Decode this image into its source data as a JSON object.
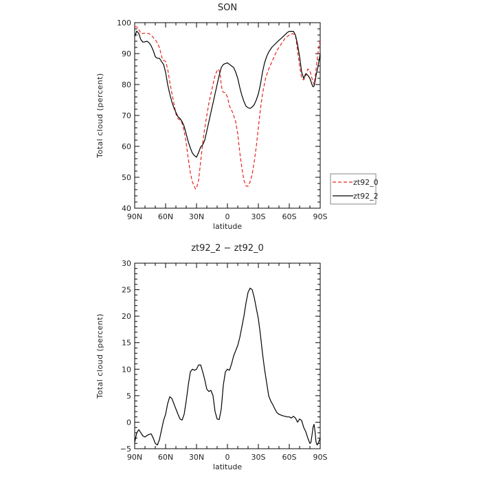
{
  "chart_data": [
    {
      "type": "line",
      "title": "SON",
      "xlabel": "latitude",
      "ylabel": "Total cloud (percent)",
      "xlim": [
        90,
        -90
      ],
      "ylim": [
        40,
        100
      ],
      "x_ticks": [
        90,
        60,
        30,
        0,
        -30,
        -60,
        -90
      ],
      "x_tick_labels": [
        "90N",
        "60N",
        "30N",
        "0",
        "30S",
        "60S",
        "90S"
      ],
      "y_ticks": [
        40,
        50,
        60,
        70,
        80,
        90,
        100
      ],
      "y_tick_labels": [
        "40",
        "50",
        "60",
        "70",
        "80",
        "90",
        "100"
      ],
      "legend": {
        "placement": "right"
      },
      "series": [
        {
          "name": "zt92_0",
          "color": "#e8211d",
          "dash": "dashed",
          "points": [
            [
              90,
              98.8
            ],
            [
              87,
              98.5
            ],
            [
              84,
              96.5
            ],
            [
              80,
              96.6
            ],
            [
              76,
              96.5
            ],
            [
              73,
              95.6
            ],
            [
              69,
              94
            ],
            [
              66,
              92
            ],
            [
              63,
              88
            ],
            [
              60,
              87.5
            ],
            [
              58,
              85
            ],
            [
              55,
              79
            ],
            [
              52,
              74
            ],
            [
              50,
              70.5
            ],
            [
              48,
              69
            ],
            [
              46,
              68.5
            ],
            [
              44,
              67.5
            ],
            [
              42,
              65
            ],
            [
              40,
              61
            ],
            [
              38,
              56
            ],
            [
              36,
              51.5
            ],
            [
              34,
              48.5
            ],
            [
              32,
              47
            ],
            [
              31,
              46.2
            ],
            [
              30,
              46.5
            ],
            [
              28,
              49
            ],
            [
              26,
              55
            ],
            [
              24,
              61
            ],
            [
              22,
              66
            ],
            [
              20,
              70
            ],
            [
              18,
              74
            ],
            [
              16,
              77
            ],
            [
              14,
              80
            ],
            [
              12,
              83
            ],
            [
              10,
              84.5
            ],
            [
              9,
              85
            ],
            [
              8,
              84.5
            ],
            [
              7,
              83
            ],
            [
              6,
              80
            ],
            [
              5,
              78
            ],
            [
              4,
              77.5
            ],
            [
              3,
              77.5
            ],
            [
              2,
              77.2
            ],
            [
              0,
              76
            ],
            [
              -2,
              73
            ],
            [
              -5,
              71
            ],
            [
              -8,
              68
            ],
            [
              -10,
              64
            ],
            [
              -12,
              58
            ],
            [
              -14,
              53
            ],
            [
              -16,
              49
            ],
            [
              -18,
              47.2
            ],
            [
              -20,
              47.1
            ],
            [
              -22,
              48.5
            ],
            [
              -24,
              51
            ],
            [
              -26,
              55
            ],
            [
              -28,
              60
            ],
            [
              -30,
              66
            ],
            [
              -32,
              72
            ],
            [
              -34,
              77
            ],
            [
              -37,
              82
            ],
            [
              -40,
              85
            ],
            [
              -44,
              88
            ],
            [
              -48,
              91
            ],
            [
              -52,
              93
            ],
            [
              -56,
              95
            ],
            [
              -60,
              96
            ],
            [
              -63,
              96.5
            ],
            [
              -66,
              96
            ],
            [
              -68,
              91
            ],
            [
              -70,
              86
            ],
            [
              -72,
              82
            ],
            [
              -74,
              81.5
            ],
            [
              -76,
              83
            ],
            [
              -78,
              85
            ],
            [
              -80,
              84.5
            ],
            [
              -82,
              82
            ],
            [
              -84,
              80
            ],
            [
              -85,
              82
            ],
            [
              -87,
              88
            ],
            [
              -89,
              93
            ],
            [
              -90,
              94
            ]
          ]
        },
        {
          "name": "zt92_2",
          "color": "#000000",
          "dash": "solid",
          "points": [
            [
              90,
              95.5
            ],
            [
              88,
              97.3
            ],
            [
              86,
              96.5
            ],
            [
              84,
              94.5
            ],
            [
              82,
              93.7
            ],
            [
              80,
              93.8
            ],
            [
              78,
              94
            ],
            [
              76,
              93.5
            ],
            [
              74,
              92.5
            ],
            [
              72,
              91
            ],
            [
              70,
              89
            ],
            [
              68,
              88.5
            ],
            [
              66,
              88.5
            ],
            [
              64,
              87.5
            ],
            [
              62,
              86.5
            ],
            [
              60,
              84
            ],
            [
              58,
              80
            ],
            [
              56,
              77
            ],
            [
              54,
              74.5
            ],
            [
              52,
              72.5
            ],
            [
              50,
              71
            ],
            [
              48,
              69.6
            ],
            [
              46,
              69
            ],
            [
              44,
              68
            ],
            [
              42,
              66.5
            ],
            [
              40,
              64
            ],
            [
              38,
              61.5
            ],
            [
              36,
              59.5
            ],
            [
              34,
              57.8
            ],
            [
              32,
              57
            ],
            [
              30,
              56.5
            ],
            [
              28,
              58
            ],
            [
              26,
              59.8
            ],
            [
              24,
              60.5
            ],
            [
              22,
              62
            ],
            [
              20,
              65
            ],
            [
              18,
              68
            ],
            [
              16,
              71
            ],
            [
              14,
              74
            ],
            [
              12,
              77
            ],
            [
              10,
              80
            ],
            [
              8,
              83
            ],
            [
              6,
              85.5
            ],
            [
              4,
              86.5
            ],
            [
              2,
              86.8
            ],
            [
              0,
              87
            ],
            [
              -2,
              86.5
            ],
            [
              -4,
              86
            ],
            [
              -6,
              85.5
            ],
            [
              -8,
              84
            ],
            [
              -10,
              82
            ],
            [
              -12,
              79
            ],
            [
              -14,
              76.5
            ],
            [
              -16,
              74.5
            ],
            [
              -18,
              73
            ],
            [
              -20,
              72.5
            ],
            [
              -22,
              72.3
            ],
            [
              -24,
              72.7
            ],
            [
              -26,
              73.5
            ],
            [
              -28,
              75
            ],
            [
              -30,
              77
            ],
            [
              -32,
              80
            ],
            [
              -34,
              84
            ],
            [
              -36,
              87
            ],
            [
              -38,
              89
            ],
            [
              -40,
              90.5
            ],
            [
              -43,
              92
            ],
            [
              -46,
              93
            ],
            [
              -50,
              94.3
            ],
            [
              -54,
              95.5
            ],
            [
              -58,
              96.8
            ],
            [
              -60,
              97.2
            ],
            [
              -64,
              97.2
            ],
            [
              -66,
              96
            ],
            [
              -68,
              93
            ],
            [
              -70,
              89
            ],
            [
              -72,
              84
            ],
            [
              -74,
              82
            ],
            [
              -76,
              83.5
            ],
            [
              -78,
              83
            ],
            [
              -80,
              82
            ],
            [
              -82,
              80
            ],
            [
              -83,
              79.3
            ],
            [
              -84,
              79.5
            ],
            [
              -85,
              81
            ],
            [
              -86,
              83
            ],
            [
              -88,
              86
            ],
            [
              -89,
              88
            ],
            [
              -90,
              90
            ]
          ]
        }
      ]
    },
    {
      "type": "line",
      "title": "zt92_2 − zt92_0",
      "xlabel": "latitude",
      "ylabel": "Total cloud (percent)",
      "xlim": [
        90,
        -90
      ],
      "ylim": [
        -5,
        30
      ],
      "x_ticks": [
        90,
        60,
        30,
        0,
        -30,
        -60,
        -90
      ],
      "x_tick_labels": [
        "90N",
        "60N",
        "30N",
        "0",
        "30S",
        "60S",
        "90S"
      ],
      "y_ticks": [
        -5,
        0,
        5,
        10,
        15,
        20,
        25,
        30
      ],
      "y_tick_labels": [
        "−5",
        "0",
        "5",
        "10",
        "15",
        "20",
        "25",
        "30"
      ],
      "series": [
        {
          "color": "#000000",
          "dash": "solid",
          "points": [
            [
              90,
              -3.8
            ],
            [
              88,
              -2
            ],
            [
              86,
              -1.4
            ],
            [
              84,
              -2
            ],
            [
              82,
              -2.6
            ],
            [
              80,
              -2.8
            ],
            [
              78,
              -2.5
            ],
            [
              76,
              -2.3
            ],
            [
              74,
              -2.2
            ],
            [
              72,
              -3
            ],
            [
              70,
              -4
            ],
            [
              68,
              -4.3
            ],
            [
              66,
              -3.3
            ],
            [
              64,
              -1.5
            ],
            [
              62,
              0.3
            ],
            [
              60,
              1.5
            ],
            [
              58,
              3.5
            ],
            [
              56,
              4.8
            ],
            [
              54,
              4.5
            ],
            [
              52,
              3.5
            ],
            [
              50,
              2.5
            ],
            [
              48,
              1.5
            ],
            [
              46,
              0.6
            ],
            [
              44,
              0.4
            ],
            [
              42,
              1.5
            ],
            [
              40,
              4
            ],
            [
              38,
              7
            ],
            [
              36,
              9.5
            ],
            [
              34,
              10
            ],
            [
              32,
              9.8
            ],
            [
              30,
              10
            ],
            [
              28,
              10.8
            ],
            [
              26,
              10.8
            ],
            [
              24,
              9.5
            ],
            [
              22,
              8
            ],
            [
              20,
              6.2
            ],
            [
              18,
              5.8
            ],
            [
              16,
              6
            ],
            [
              14,
              5
            ],
            [
              12,
              2
            ],
            [
              10,
              0.6
            ],
            [
              8,
              0.5
            ],
            [
              6,
              2.5
            ],
            [
              4,
              7
            ],
            [
              2,
              9.5
            ],
            [
              0,
              10
            ],
            [
              -2,
              9.8
            ],
            [
              -4,
              11
            ],
            [
              -6,
              12.5
            ],
            [
              -8,
              13.5
            ],
            [
              -10,
              14.5
            ],
            [
              -12,
              16
            ],
            [
              -14,
              18
            ],
            [
              -16,
              20
            ],
            [
              -18,
              22.5
            ],
            [
              -20,
              24.5
            ],
            [
              -22,
              25.3
            ],
            [
              -24,
              25
            ],
            [
              -26,
              23.5
            ],
            [
              -28,
              21.5
            ],
            [
              -30,
              19.5
            ],
            [
              -32,
              16.5
            ],
            [
              -34,
              13
            ],
            [
              -36,
              10
            ],
            [
              -38,
              7.5
            ],
            [
              -40,
              5
            ],
            [
              -42,
              4
            ],
            [
              -44,
              3.3
            ],
            [
              -46,
              2.5
            ],
            [
              -48,
              1.8
            ],
            [
              -50,
              1.5
            ],
            [
              -54,
              1.2
            ],
            [
              -58,
              1
            ],
            [
              -60,
              1
            ],
            [
              -62,
              0.8
            ],
            [
              -64,
              1.1
            ],
            [
              -66,
              0.8
            ],
            [
              -68,
              0
            ],
            [
              -70,
              0.6
            ],
            [
              -72,
              0.3
            ],
            [
              -74,
              -1
            ],
            [
              -76,
              -1.8
            ],
            [
              -78,
              -3
            ],
            [
              -80,
              -4
            ],
            [
              -81,
              -3.8
            ],
            [
              -82,
              -2.5
            ],
            [
              -83,
              -1
            ],
            [
              -84,
              -0.4
            ],
            [
              -85,
              -1.8
            ],
            [
              -86,
              -3.8
            ],
            [
              -87,
              -4.3
            ],
            [
              -88,
              -4
            ],
            [
              -89,
              -3.5
            ],
            [
              -90,
              -3
            ]
          ]
        }
      ]
    }
  ]
}
